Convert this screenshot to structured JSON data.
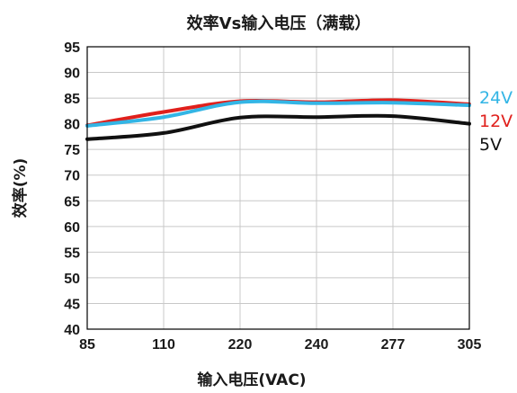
{
  "chart_data": {
    "type": "line",
    "title": "效率Vs输入电压（满载）",
    "xlabel": "输入电压(VAC)",
    "ylabel": "效率(%)",
    "categories": [
      "85",
      "110",
      "220",
      "240",
      "277",
      "305"
    ],
    "ylim": [
      40,
      95
    ],
    "yticks": [
      40,
      45,
      50,
      55,
      60,
      65,
      70,
      75,
      80,
      85,
      90,
      95
    ],
    "grid": true,
    "legend_position": "right",
    "series": [
      {
        "name": "24V",
        "color": "#33b5e5",
        "values": [
          79.6,
          81.3,
          84.2,
          84.0,
          84.1,
          83.6
        ]
      },
      {
        "name": "12V",
        "color": "#e0201c",
        "values": [
          79.7,
          82.3,
          84.4,
          84.2,
          84.6,
          83.8
        ]
      },
      {
        "name": "5V",
        "color": "#111111",
        "values": [
          77.0,
          78.2,
          81.2,
          81.3,
          81.5,
          80.0
        ]
      }
    ]
  }
}
